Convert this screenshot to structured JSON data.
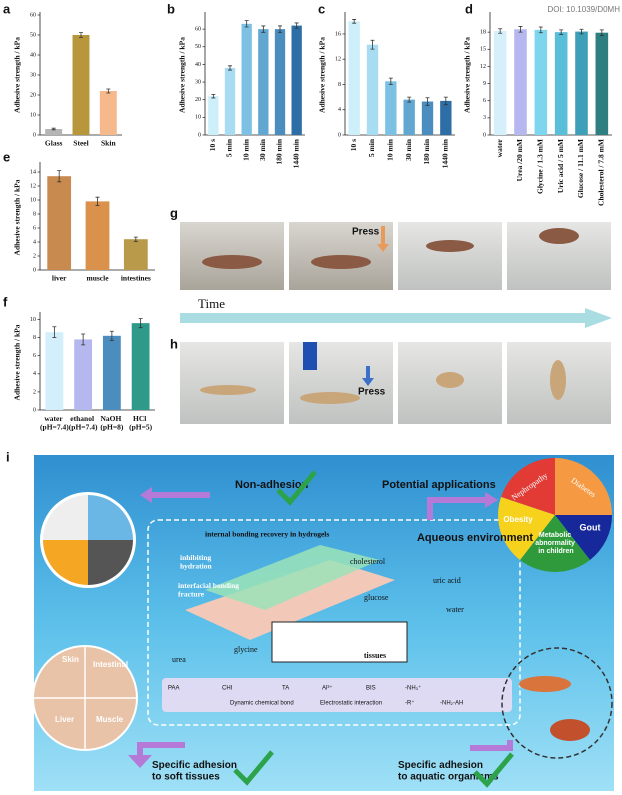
{
  "header": {
    "doi": "DOI: 10.1039/D0MH"
  },
  "chart_data": [
    {
      "type": "bar",
      "label": "a",
      "y_label": "Adhesive strength / kPa",
      "categories": [
        "Glass",
        "Steel",
        "Skin"
      ],
      "values": [
        3,
        50,
        22
      ],
      "errors": [
        0.4,
        1.2,
        1.0
      ],
      "colors": [
        "#b5b5b5",
        "#b8963c",
        "#f6b98c"
      ],
      "ylim": [
        0,
        60
      ],
      "yticks": [
        0,
        10,
        20,
        30,
        40,
        50,
        60
      ],
      "label_style": "flat"
    },
    {
      "type": "bar",
      "label": "b",
      "y_label": "Adhesive strength / kPa",
      "categories": [
        "10 s",
        "5 min",
        "10 min",
        "30 min",
        "180 min",
        "1440 min"
      ],
      "values": [
        22,
        38,
        63,
        60,
        60,
        62
      ],
      "errors": [
        1.0,
        1.2,
        1.8,
        1.8,
        1.8,
        1.5
      ],
      "colors": [
        "#cdeffa",
        "#a8dcf3",
        "#7cc1e3",
        "#62a7d1",
        "#4b8dbf",
        "#2e6ea6"
      ],
      "ylim": [
        0,
        68
      ],
      "yticks": [
        0,
        10,
        20,
        30,
        40,
        50,
        60
      ],
      "label_style": "rotated"
    },
    {
      "type": "bar",
      "label": "c",
      "y_label": "Adhesive strength / kPa",
      "categories": [
        "10 s",
        "5 min",
        "10 min",
        "30 min",
        "180 min",
        "1440 min"
      ],
      "values": [
        18,
        14.3,
        8.5,
        5.6,
        5.3,
        5.4
      ],
      "errors": [
        0.3,
        0.7,
        0.5,
        0.4,
        0.6,
        0.6
      ],
      "colors": [
        "#cdeffa",
        "#a8dcf3",
        "#7cc1e3",
        "#62a7d1",
        "#4b8dbf",
        "#2e6ea6"
      ],
      "ylim": [
        0,
        19
      ],
      "yticks": [
        0,
        4,
        8,
        12,
        16
      ],
      "label_style": "rotated"
    },
    {
      "type": "bar",
      "label": "d",
      "y_label": "Adhesive strength / kPa",
      "categories": [
        "water",
        "Urea /20 mM",
        "Glycine / 1.3 mM",
        "Uric acid / 5 mM",
        "Glucose / 11.1 mM",
        "Cholesterol / 7.8 mM"
      ],
      "values": [
        18.2,
        18.5,
        18.4,
        18.0,
        18.1,
        17.9
      ],
      "errors": [
        0.4,
        0.5,
        0.5,
        0.4,
        0.4,
        0.5
      ],
      "colors": [
        "#d6f0fb",
        "#b5b7ee",
        "#7ed6ee",
        "#59bfd8",
        "#3e9fb8",
        "#2f7f80"
      ],
      "ylim": [
        0,
        21
      ],
      "yticks": [
        0,
        3,
        6,
        9,
        12,
        15,
        18
      ],
      "label_style": "rotated"
    },
    {
      "type": "bar",
      "label": "e",
      "y_label": "Adhesive strength / kPa",
      "categories": [
        "liver",
        "muscle",
        "intestines"
      ],
      "values": [
        13.4,
        9.8,
        4.4
      ],
      "errors": [
        0.8,
        0.6,
        0.3
      ],
      "colors": [
        "#c98a4f",
        "#d9914b",
        "#b89a4a"
      ],
      "ylim": [
        0,
        15
      ],
      "yticks": [
        0,
        2,
        4,
        6,
        8,
        10,
        12,
        14
      ],
      "label_style": "flat"
    },
    {
      "type": "bar",
      "label": "f",
      "y_label": "Adhesive strength / kPa",
      "categories": [
        "water (pH=7.4)",
        "ethanol (pH=7.4)",
        "NaOH (pH=8)",
        "HCl (pH=5)"
      ],
      "values": [
        8.6,
        7.8,
        8.2,
        9.6
      ],
      "errors": [
        0.6,
        0.6,
        0.5,
        0.5
      ],
      "colors": [
        "#d3effb",
        "#b5b8ee",
        "#4b8dbf",
        "#2f9a8a"
      ],
      "ylim": [
        0,
        10.5
      ],
      "yticks": [
        0,
        2,
        4,
        6,
        8,
        10
      ],
      "label_style": "split"
    }
  ],
  "panel_g": {
    "label": "g",
    "press": "Press"
  },
  "time": "Time",
  "panel_h": {
    "label": "h",
    "press": "Press"
  },
  "schematic": {
    "label": "i",
    "non_adhesion": "Non-adhesion",
    "potential": "Potential applications",
    "aqueous": "Aqueous environment",
    "recovery": "internal bonding recovery in hydrogels",
    "inhibiting": "inhibiting hydration",
    "fracture": "interfacial bonding fracture",
    "cholesterol": "cholesterol",
    "uric_acid": "uric acid",
    "glucose": "glucose",
    "water": "water",
    "urea": "urea",
    "glycine": "glycine",
    "tissues": "tissues",
    "paa": "PAA",
    "chi": "CHI",
    "ta": "TA",
    "al": "Al³⁺",
    "bis": "BIS",
    "dynamic": "Dynamic chemical bond",
    "electro": "Electrostatic interaction",
    "nh3": "-NH₃⁺",
    "r": "-R⁺",
    "nh2": "-NH₂-AH",
    "soft": "Specific adhesion to soft tissues",
    "aquatic": "Specific adhesion to aquatic organisms",
    "nephropathy": "Nephropathy",
    "diabetes": "Diabetes",
    "gout": "Gout",
    "metabolic": "Metabolic abnormality in children",
    "obesity": "Obesity",
    "skin": "Skin",
    "intestinal": "Intestinal",
    "liver": "Liver",
    "muscle": "Muscle"
  }
}
